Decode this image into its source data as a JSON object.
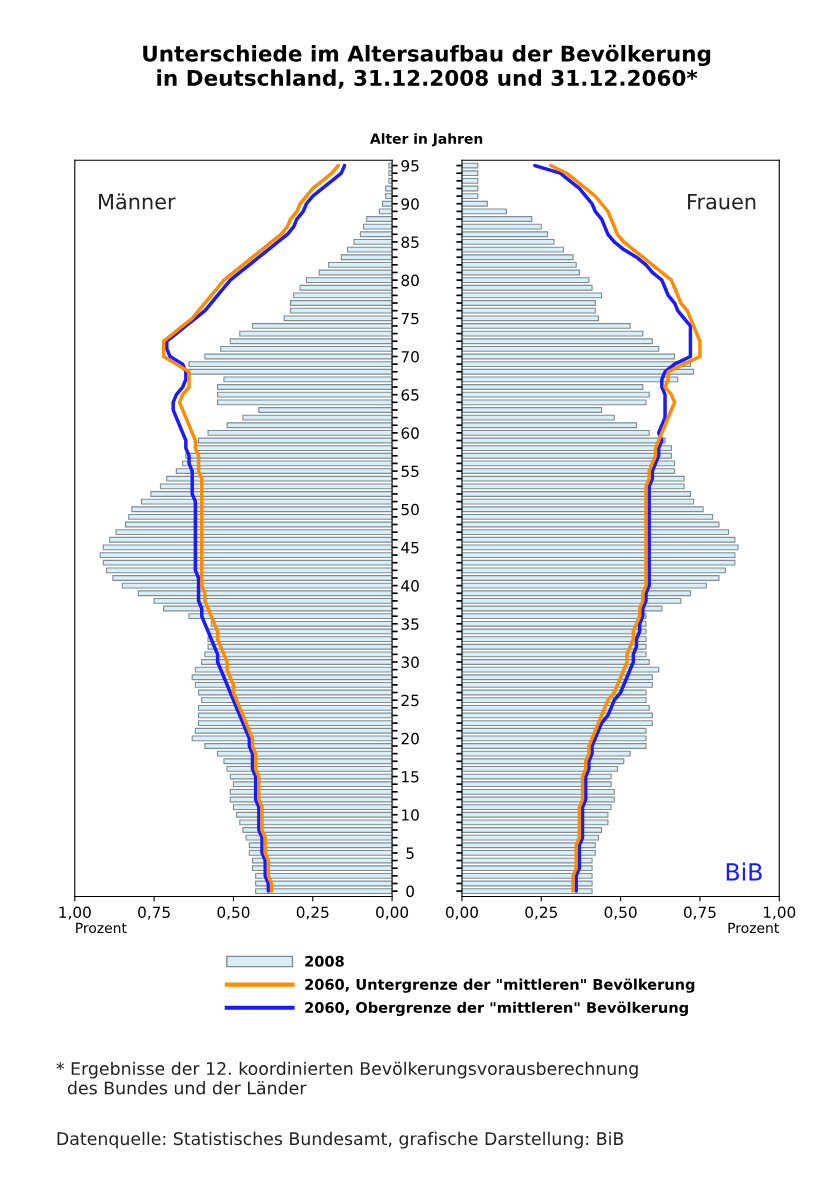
{
  "chart_data": [
    {
      "type": "bar",
      "orientation": "horizontal",
      "title": "Unterschiede im Altersaufbau der Bevölkerung\nin Deutschland, 31.12.2008 und 31.12.2060*",
      "ylabel": "Alter in Jahren",
      "xlabel": "Prozent",
      "legend": "bottom",
      "categories": [
        "95",
        null,
        null,
        null,
        null,
        "90",
        null,
        null,
        null,
        null,
        "85",
        null,
        null,
        null,
        null,
        "80",
        null,
        null,
        null,
        null,
        "75",
        null,
        null,
        null,
        null,
        "70",
        null,
        null,
        null,
        null,
        "65",
        null,
        null,
        null,
        null,
        "60",
        null,
        null,
        null,
        null,
        "55",
        null,
        null,
        null,
        null,
        "50",
        null,
        null,
        null,
        null,
        "45",
        null,
        null,
        null,
        null,
        "40",
        null,
        null,
        null,
        null,
        "35",
        null,
        null,
        null,
        null,
        "30",
        null,
        null,
        null,
        null,
        "25",
        null,
        null,
        null,
        null,
        "20",
        null,
        null,
        null,
        null,
        "15",
        null,
        null,
        null,
        null,
        "10",
        null,
        null,
        null,
        null,
        "5",
        null,
        null,
        null,
        null,
        "0"
      ],
      "xlim": [
        1,
        0
      ],
      "xticks": [
        {
          "value": 1,
          "label": "1,00"
        },
        {
          "value": 0.75,
          "label": "0,75"
        },
        {
          "value": 0.5,
          "label": "0,50"
        },
        {
          "value": 0.25,
          "label": "0,25"
        },
        {
          "value": 0,
          "label": "0,00"
        }
      ],
      "annotations": [
        "Männer",
        "* Ergebnisse der 12. koordinierten Bevölkerungsvorausberechnung\n  des Bundes und der Länder",
        "Datenquelle: Statistisches Bundesamt, grafische Darstellung: BiB"
      ],
      "series": [
        {
          "name": "2008",
          "color": "#d9eef7",
          "values": [
            0.01,
            0.01,
            0.01,
            0.02,
            0.02,
            0.03,
            0.04,
            0.08,
            0.09,
            0.1,
            0.12,
            0.14,
            0.16,
            0.2,
            0.23,
            0.27,
            0.29,
            0.31,
            0.32,
            0.32,
            0.34,
            0.44,
            0.48,
            0.51,
            0.54,
            0.59,
            0.64,
            0.64,
            0.53,
            0.55,
            0.55,
            0.55,
            0.42,
            0.47,
            0.52,
            0.58,
            0.61,
            0.62,
            0.65,
            0.66,
            0.68,
            0.71,
            0.73,
            0.76,
            0.79,
            0.82,
            0.83,
            0.84,
            0.87,
            0.89,
            0.91,
            0.92,
            0.91,
            0.9,
            0.88,
            0.85,
            0.8,
            0.75,
            0.72,
            0.64,
            0.57,
            0.58,
            0.58,
            0.58,
            0.59,
            0.6,
            0.62,
            0.63,
            0.62,
            0.61,
            0.6,
            0.61,
            0.61,
            0.61,
            0.62,
            0.63,
            0.59,
            0.55,
            0.53,
            0.52,
            0.51,
            0.5,
            0.51,
            0.51,
            0.5,
            0.49,
            0.48,
            0.47,
            0.46,
            0.45,
            0.45,
            0.44,
            0.44,
            0.43,
            0.43,
            0.43
          ]
        },
        {
          "type": "line",
          "name": "2060, Untergrenze der \"mittleren\" Bevölkerung",
          "color": "#ff8c00",
          "values": [
            0.17,
            0.19,
            0.22,
            0.25,
            0.27,
            0.29,
            0.3,
            0.32,
            0.33,
            0.35,
            0.38,
            0.41,
            0.44,
            0.47,
            0.5,
            0.53,
            0.55,
            0.57,
            0.59,
            0.61,
            0.63,
            0.66,
            0.69,
            0.72,
            0.72,
            0.72,
            0.68,
            0.64,
            0.64,
            0.64,
            0.66,
            0.67,
            0.66,
            0.65,
            0.64,
            0.63,
            0.62,
            0.62,
            0.61,
            0.61,
            0.61,
            0.6,
            0.6,
            0.6,
            0.6,
            0.6,
            0.6,
            0.6,
            0.6,
            0.6,
            0.6,
            0.6,
            0.6,
            0.6,
            0.6,
            0.6,
            0.59,
            0.59,
            0.58,
            0.57,
            0.56,
            0.55,
            0.55,
            0.54,
            0.53,
            0.52,
            0.52,
            0.51,
            0.5,
            0.5,
            0.49,
            0.48,
            0.47,
            0.46,
            0.45,
            0.44,
            0.44,
            0.43,
            0.43,
            0.43,
            0.42,
            0.42,
            0.42,
            0.42,
            0.41,
            0.41,
            0.41,
            0.41,
            0.4,
            0.4,
            0.4,
            0.39,
            0.39,
            0.39,
            0.38,
            0.38
          ]
        },
        {
          "type": "line",
          "name": "2060, Obergrenze der \"mittleren\" Bevölkerung",
          "color": "#1a1aff",
          "values": [
            0.15,
            0.16,
            0.19,
            0.22,
            0.25,
            0.27,
            0.28,
            0.3,
            0.31,
            0.33,
            0.36,
            0.39,
            0.42,
            0.45,
            0.48,
            0.51,
            0.53,
            0.55,
            0.57,
            0.59,
            0.62,
            0.65,
            0.68,
            0.71,
            0.71,
            0.7,
            0.66,
            0.65,
            0.65,
            0.66,
            0.68,
            0.69,
            0.69,
            0.68,
            0.67,
            0.66,
            0.65,
            0.65,
            0.64,
            0.64,
            0.63,
            0.63,
            0.63,
            0.63,
            0.62,
            0.62,
            0.62,
            0.62,
            0.62,
            0.62,
            0.62,
            0.62,
            0.62,
            0.62,
            0.61,
            0.61,
            0.61,
            0.61,
            0.6,
            0.6,
            0.59,
            0.58,
            0.57,
            0.56,
            0.55,
            0.55,
            0.54,
            0.53,
            0.52,
            0.51,
            0.5,
            0.49,
            0.48,
            0.47,
            0.46,
            0.45,
            0.45,
            0.44,
            0.44,
            0.44,
            0.43,
            0.43,
            0.43,
            0.43,
            0.42,
            0.42,
            0.42,
            0.42,
            0.41,
            0.41,
            0.41,
            0.4,
            0.4,
            0.4,
            0.39,
            0.39
          ]
        }
      ]
    },
    {
      "type": "bar",
      "orientation": "horizontal",
      "xlabel": "Prozent",
      "tick_labels": "x",
      "categories": [
        "95",
        null,
        null,
        null,
        null,
        "90",
        null,
        null,
        null,
        null,
        "85",
        null,
        null,
        null,
        null,
        "80",
        null,
        null,
        null,
        null,
        "75",
        null,
        null,
        null,
        null,
        "70",
        null,
        null,
        null,
        null,
        "65",
        null,
        null,
        null,
        null,
        "60",
        null,
        null,
        null,
        null,
        "55",
        null,
        null,
        null,
        null,
        "50",
        null,
        null,
        null,
        null,
        "45",
        null,
        null,
        null,
        null,
        "40",
        null,
        null,
        null,
        null,
        "35",
        null,
        null,
        null,
        null,
        "30",
        null,
        null,
        null,
        null,
        "25",
        null,
        null,
        null,
        null,
        "20",
        null,
        null,
        null,
        null,
        "15",
        null,
        null,
        null,
        null,
        "10",
        null,
        null,
        null,
        null,
        "5",
        null,
        null,
        null,
        null,
        "0"
      ],
      "xlim": [
        0,
        1
      ],
      "xticks": [
        {
          "value": 0,
          "label": "0,00"
        },
        {
          "value": 0.25,
          "label": "0,25"
        },
        {
          "value": 0.5,
          "label": "0,50"
        },
        {
          "value": 0.75,
          "label": "0,75"
        },
        {
          "value": 1,
          "label": "1,00"
        }
      ],
      "annotations": [
        "Frauen",
        "BiB"
      ],
      "series": [
        {
          "color": "#d9eef7",
          "values": [
            0.05,
            0.05,
            0.05,
            0.05,
            0.05,
            0.08,
            0.14,
            0.22,
            0.25,
            0.27,
            0.29,
            0.32,
            0.35,
            0.36,
            0.37,
            0.4,
            0.41,
            0.44,
            0.42,
            0.42,
            0.43,
            0.53,
            0.57,
            0.6,
            0.62,
            0.67,
            0.72,
            0.73,
            0.68,
            0.57,
            0.59,
            0.58,
            0.44,
            0.48,
            0.55,
            0.59,
            0.64,
            0.66,
            0.66,
            0.67,
            0.67,
            0.7,
            0.7,
            0.72,
            0.73,
            0.76,
            0.79,
            0.81,
            0.84,
            0.86,
            0.87,
            0.86,
            0.86,
            0.83,
            0.81,
            0.77,
            0.72,
            0.69,
            0.63,
            0.58,
            0.58,
            0.58,
            0.58,
            0.58,
            0.58,
            0.59,
            0.62,
            0.6,
            0.6,
            0.58,
            0.58,
            0.59,
            0.6,
            0.6,
            0.58,
            0.58,
            0.58,
            0.53,
            0.51,
            0.49,
            0.47,
            0.47,
            0.48,
            0.48,
            0.47,
            0.46,
            0.46,
            0.44,
            0.43,
            0.42,
            0.42,
            0.41,
            0.41,
            0.41,
            0.41,
            0.41
          ]
        },
        {
          "type": "line",
          "color": "#ff8c00",
          "values": [
            0.28,
            0.33,
            0.36,
            0.39,
            0.42,
            0.44,
            0.46,
            0.47,
            0.48,
            0.49,
            0.51,
            0.54,
            0.57,
            0.6,
            0.63,
            0.66,
            0.67,
            0.68,
            0.69,
            0.71,
            0.72,
            0.73,
            0.74,
            0.75,
            0.75,
            0.75,
            0.7,
            0.65,
            0.65,
            0.64,
            0.66,
            0.67,
            0.66,
            0.65,
            0.64,
            0.63,
            0.62,
            0.61,
            0.61,
            0.6,
            0.59,
            0.59,
            0.58,
            0.58,
            0.58,
            0.58,
            0.58,
            0.58,
            0.58,
            0.58,
            0.58,
            0.58,
            0.58,
            0.58,
            0.58,
            0.58,
            0.57,
            0.57,
            0.56,
            0.56,
            0.55,
            0.54,
            0.54,
            0.53,
            0.52,
            0.52,
            0.51,
            0.5,
            0.49,
            0.48,
            0.46,
            0.45,
            0.44,
            0.43,
            0.42,
            0.41,
            0.4,
            0.4,
            0.39,
            0.39,
            0.38,
            0.38,
            0.38,
            0.38,
            0.37,
            0.37,
            0.37,
            0.37,
            0.37,
            0.36,
            0.36,
            0.36,
            0.36,
            0.35,
            0.35,
            0.35
          ]
        },
        {
          "type": "line",
          "color": "#1a1aff",
          "values": [
            0.23,
            0.31,
            0.34,
            0.37,
            0.39,
            0.41,
            0.42,
            0.44,
            0.45,
            0.46,
            0.48,
            0.51,
            0.55,
            0.58,
            0.6,
            0.63,
            0.64,
            0.65,
            0.67,
            0.68,
            0.7,
            0.72,
            0.72,
            0.72,
            0.72,
            0.72,
            0.67,
            0.64,
            0.63,
            0.63,
            0.64,
            0.64,
            0.64,
            0.64,
            0.63,
            0.62,
            0.63,
            0.62,
            0.62,
            0.61,
            0.6,
            0.6,
            0.59,
            0.59,
            0.59,
            0.59,
            0.59,
            0.59,
            0.59,
            0.59,
            0.59,
            0.59,
            0.59,
            0.59,
            0.59,
            0.59,
            0.58,
            0.58,
            0.57,
            0.57,
            0.56,
            0.56,
            0.55,
            0.55,
            0.54,
            0.54,
            0.53,
            0.52,
            0.51,
            0.5,
            0.48,
            0.47,
            0.46,
            0.44,
            0.43,
            0.42,
            0.41,
            0.41,
            0.4,
            0.4,
            0.39,
            0.39,
            0.39,
            0.39,
            0.38,
            0.38,
            0.38,
            0.38,
            0.38,
            0.37,
            0.37,
            0.37,
            0.37,
            0.36,
            0.36,
            0.36
          ]
        }
      ]
    }
  ]
}
